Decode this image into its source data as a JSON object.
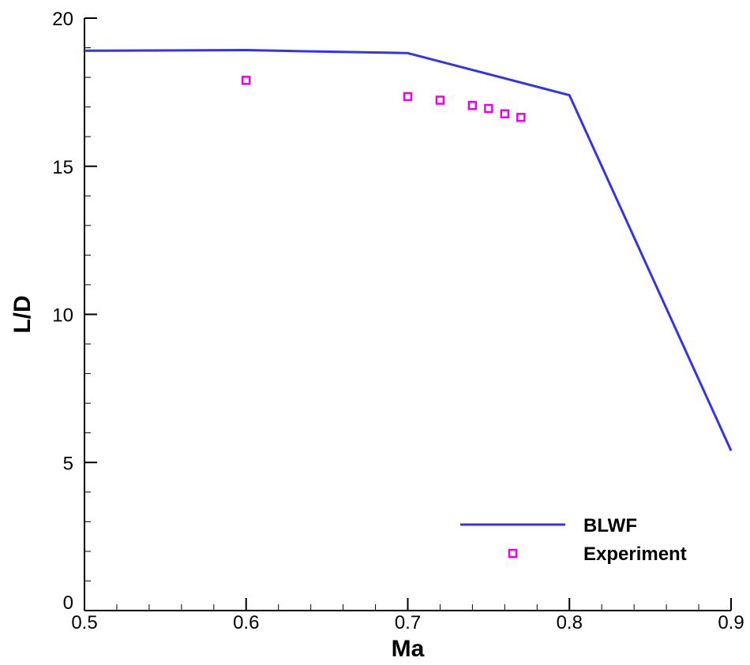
{
  "chart_data": {
    "type": "line",
    "title": "",
    "xlabel": "Ma",
    "ylabel": "L/D",
    "xlim": [
      0.5,
      0.9
    ],
    "ylim": [
      0,
      20
    ],
    "x_ticks": [
      "0.5",
      "0.6",
      "0.7",
      "0.8",
      "0.9"
    ],
    "y_ticks": [
      "0",
      "5",
      "10",
      "15",
      "20"
    ],
    "grid": false,
    "legend_position": "bottom-right",
    "series": [
      {
        "name": "BLWF",
        "kind": "line",
        "color": "#3333ee",
        "x": [
          0.5,
          0.6,
          0.7,
          0.8,
          0.9
        ],
        "y": [
          18.9,
          18.92,
          18.82,
          17.4,
          5.4
        ]
      },
      {
        "name": "Experiment",
        "kind": "scatter",
        "marker": "open-square",
        "color": "#ee00ee",
        "x": [
          0.6,
          0.7,
          0.72,
          0.74,
          0.75,
          0.76,
          0.77
        ],
        "y": [
          17.9,
          17.35,
          17.23,
          17.05,
          16.95,
          16.77,
          16.65
        ]
      }
    ]
  }
}
